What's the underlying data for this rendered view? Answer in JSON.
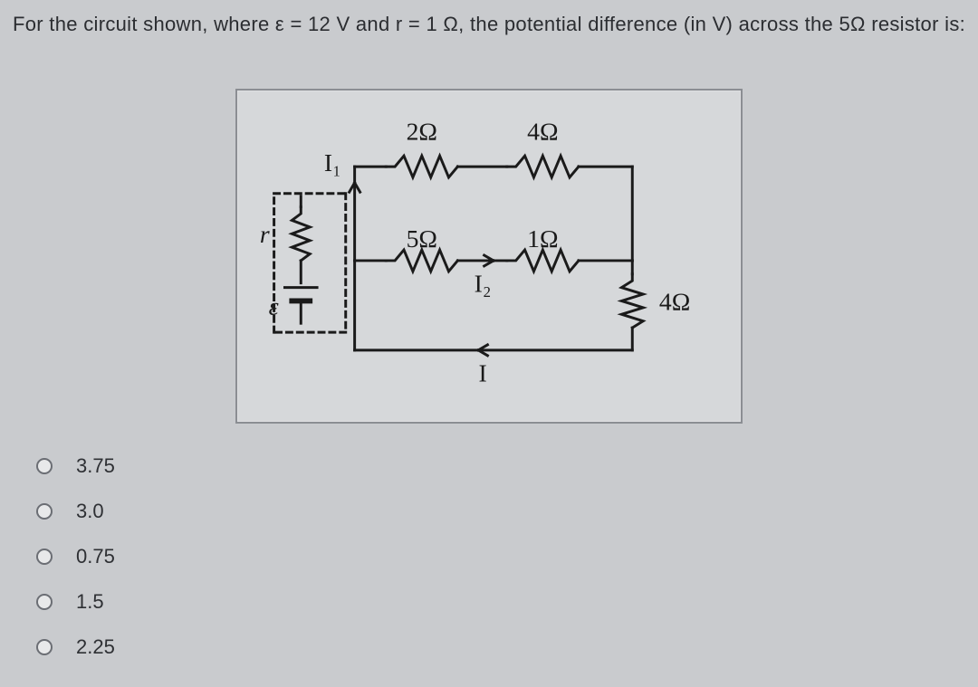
{
  "question": "For the circuit shown, where ε = 12 V and r = 1 Ω, the potential difference (in V) across the 5Ω resistor is:",
  "diagram": {
    "background_color": "#d6d8da",
    "border_color": "#8b8e93",
    "stroke_color": "#1a1a1a",
    "text_color": "#1a1a1a",
    "font_family": "serif",
    "font_size": 28,
    "labels": {
      "R_top_left": "2Ω",
      "R_top_right": "4Ω",
      "R_mid_left": "5Ω",
      "R_mid_right": "1Ω",
      "R_right": "4Ω",
      "r": "r",
      "emf": "ε",
      "I1": "I₁",
      "I2": "I₂",
      "I": "I"
    }
  },
  "answers": {
    "a": "3.75",
    "b": "3.0",
    "c": "0.75",
    "d": "1.5",
    "e": "2.25"
  }
}
